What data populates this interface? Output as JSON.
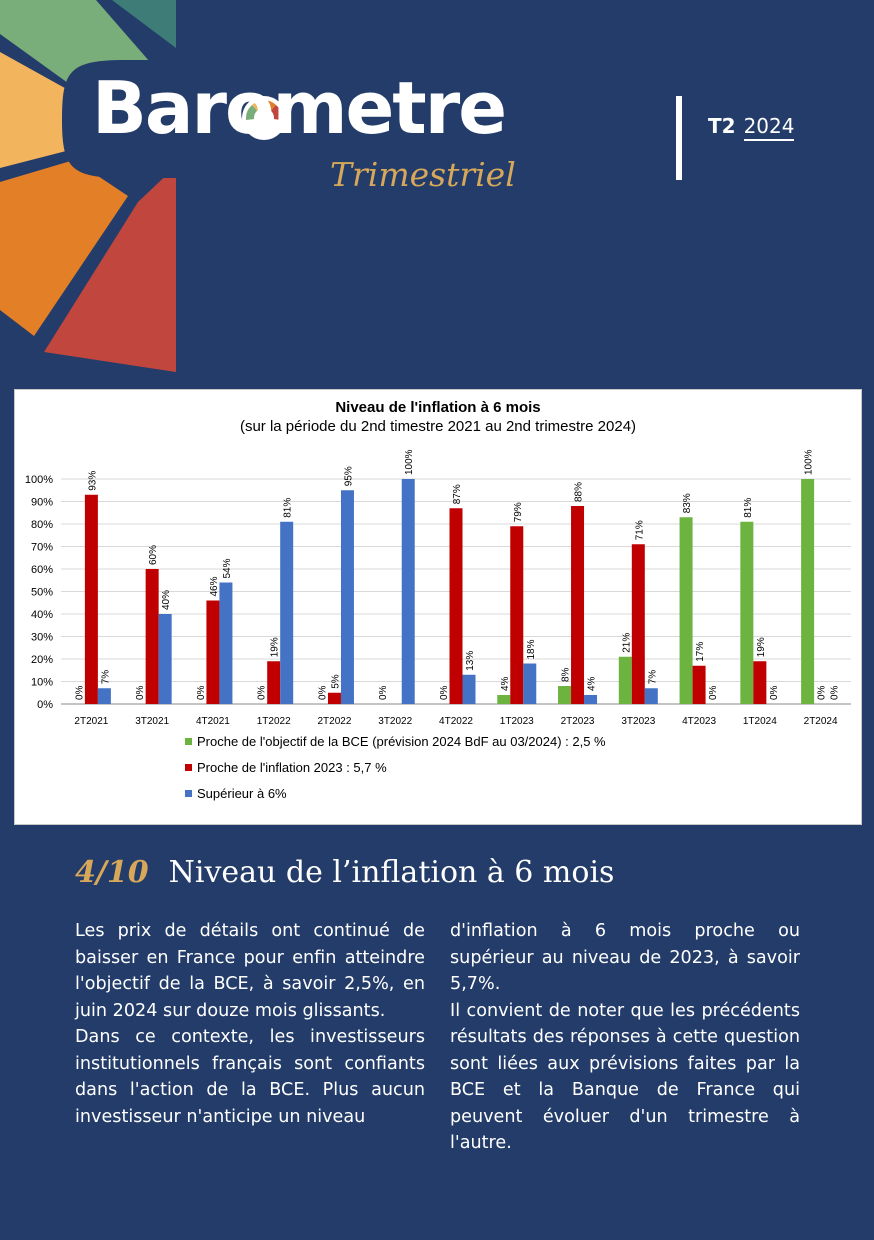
{
  "header": {
    "brand_title": "Barometre",
    "brand_subtitle": "Trimestriel",
    "edition_quarter": "T2",
    "edition_year": "2024"
  },
  "colors": {
    "background": "#233c69",
    "gold": "#d7a85a",
    "green": "#6cb33f",
    "red": "#c00000",
    "blue": "#4472c4",
    "petal_teal": "#3e7c78",
    "petal_green": "#79ad79",
    "petal_yellow": "#f2b45d",
    "petal_orange": "#e37f27",
    "petal_red": "#c0463e"
  },
  "chart_data": {
    "type": "bar",
    "title": "Niveau de l'inflation à 6 mois",
    "subtitle": "(sur la période du 2nd timestre 2021 au 2nd trimestre 2024)",
    "categories": [
      "2T2021",
      "3T2021",
      "4T2021",
      "1T2022",
      "2T2022",
      "3T2022",
      "4T2022",
      "1T2023",
      "2T2023",
      "3T2023",
      "4T2023",
      "1T2024",
      "2T2024"
    ],
    "ylim": [
      0,
      100
    ],
    "yticks": [
      "0%",
      "10%",
      "20%",
      "30%",
      "40%",
      "50%",
      "60%",
      "70%",
      "80%",
      "90%",
      "100%"
    ],
    "grid": true,
    "legend_position": "bottom",
    "series": [
      {
        "name": "Proche de l'objectif de la BCE (prévision 2024 BdF au 03/2024) : 2,5 %",
        "color": "#6cb33f",
        "values": [
          0,
          0,
          0,
          0,
          0,
          0,
          0,
          4,
          8,
          21,
          83,
          81,
          100
        ],
        "labels": [
          "0%",
          "0%",
          "0%",
          "0%",
          "0%",
          "0%",
          "0%",
          "4%",
          "8%",
          "21%",
          "83%",
          "81%",
          "100%"
        ]
      },
      {
        "name": "Proche de l'inflation 2023 : 5,7 %",
        "color": "#c00000",
        "values": [
          93,
          60,
          46,
          19,
          5,
          0,
          87,
          79,
          88,
          71,
          17,
          19,
          0
        ],
        "labels": [
          "93%",
          "60%",
          "46%",
          "19%",
          "5%",
          "",
          "87%",
          "79%",
          "88%",
          "71%",
          "17%",
          "19%",
          "0%"
        ]
      },
      {
        "name": "Supérieur à 6%",
        "color": "#4472c4",
        "values": [
          7,
          40,
          54,
          81,
          95,
          100,
          13,
          18,
          4,
          7,
          0,
          0,
          0
        ],
        "labels": [
          "7%",
          "40%",
          "54%",
          "81%",
          "95%",
          "100%",
          "13%",
          "18%",
          "4%",
          "7%",
          "0%",
          "0%",
          "0%"
        ]
      }
    ]
  },
  "section": {
    "number": "4/10",
    "title": "Niveau de l’inflation à 6 mois"
  },
  "body": {
    "left_p1": "Les prix de détails ont continué de baisser en France pour enfin atteindre l'objectif de la BCE, à savoir 2,5%, en juin 2024 sur douze mois glissants.",
    "left_p2": "Dans ce contexte, les investisseurs institutionnels français sont confiants dans l'action de la BCE. Plus aucun investisseur n'anticipe un niveau",
    "right_p1": "d'inflation à 6 mois proche ou supérieur au niveau de 2023, à savoir 5,7%.",
    "right_p2": "Il convient de noter que les précédents résultats des réponses à cette question sont liées aux prévisions faites par la BCE et la Banque de France qui peuvent évoluer d'un trimestre à l'autre."
  }
}
